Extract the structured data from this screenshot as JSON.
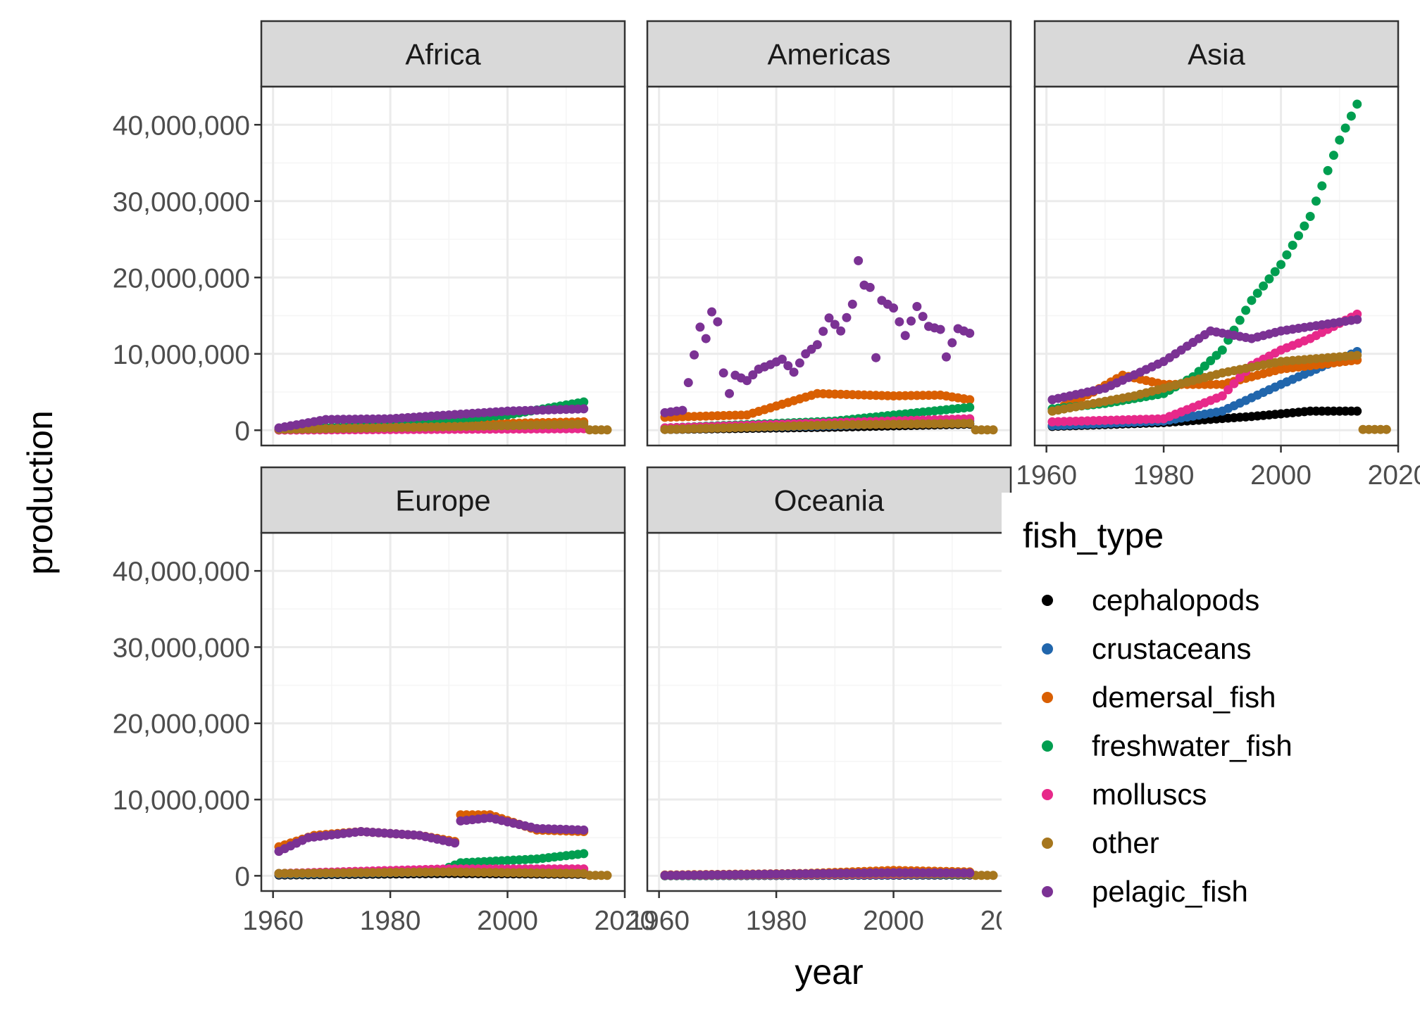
{
  "chart_data": {
    "type": "scatter",
    "facet_labels": [
      "Africa",
      "Americas",
      "Asia",
      "Europe",
      "Oceania"
    ],
    "xlabel": "year",
    "ylabel": "production",
    "x_ticks": [
      "1960",
      "1980",
      "2000",
      "2020"
    ],
    "x_tick_values": [
      1960,
      1980,
      2000,
      2020
    ],
    "xlim": [
      1958,
      2020
    ],
    "y_ticks": [
      "0",
      "10,000,000",
      "20,000,000",
      "30,000,000",
      "40,000,000"
    ],
    "y_tick_values": [
      0,
      10000000,
      20000000,
      30000000,
      40000000
    ],
    "ylim": [
      -2000000,
      45000000
    ],
    "legend": {
      "title": "fish_type",
      "position": "right",
      "items": [
        {
          "name": "cephalopods",
          "color": "#000000"
        },
        {
          "name": "crustaceans",
          "color": "#2166ac"
        },
        {
          "name": "demersal_fish",
          "color": "#d95f02"
        },
        {
          "name": "freshwater_fish",
          "color": "#009e50"
        },
        {
          "name": "molluscs",
          "color": "#e7298a"
        },
        {
          "name": "other",
          "color": "#a6761d"
        },
        {
          "name": "pelagic_fish",
          "color": "#7b3294"
        }
      ]
    },
    "grid": true,
    "series_by_facet": {
      "Africa": {
        "cephalopods": [
          [
            1961,
            50000
          ],
          [
            1990,
            200000
          ],
          [
            2013,
            350000
          ]
        ],
        "crustaceans": [
          [
            1961,
            50000
          ],
          [
            1990,
            150000
          ],
          [
            2013,
            300000
          ]
        ],
        "demersal_fish": [
          [
            1961,
            200000
          ],
          [
            1980,
            500000
          ],
          [
            2000,
            900000
          ],
          [
            2013,
            1100000
          ]
        ],
        "freshwater_fish": [
          [
            1961,
            100000
          ],
          [
            1980,
            700000
          ],
          [
            2000,
            2000000
          ],
          [
            2013,
            3700000
          ]
        ],
        "molluscs": [
          [
            1961,
            20000
          ],
          [
            2013,
            200000
          ]
        ],
        "other": [
          [
            1961,
            100000
          ],
          [
            2000,
            600000
          ],
          [
            2013,
            800000
          ],
          [
            2014,
            50000
          ],
          [
            2017,
            50000
          ]
        ],
        "pelagic_fish": [
          [
            1961,
            300000
          ],
          [
            1969,
            1400000
          ],
          [
            1980,
            1500000
          ],
          [
            1990,
            2000000
          ],
          [
            2000,
            2500000
          ],
          [
            2013,
            2800000
          ]
        ]
      },
      "Americas": {
        "cephalopods": [
          [
            1961,
            100000
          ],
          [
            1990,
            400000
          ],
          [
            2013,
            800000
          ]
        ],
        "crustaceans": [
          [
            1961,
            200000
          ],
          [
            1990,
            600000
          ],
          [
            2013,
            1200000
          ]
        ],
        "demersal_fish": [
          [
            1961,
            1700000
          ],
          [
            1975,
            2000000
          ],
          [
            1987,
            4800000
          ],
          [
            2000,
            4500000
          ],
          [
            2008,
            4600000
          ],
          [
            2013,
            4000000
          ]
        ],
        "freshwater_fish": [
          [
            1961,
            300000
          ],
          [
            1990,
            1200000
          ],
          [
            2013,
            3000000
          ]
        ],
        "molluscs": [
          [
            1961,
            300000
          ],
          [
            1990,
            1000000
          ],
          [
            2013,
            1500000
          ]
        ],
        "other": [
          [
            1961,
            100000
          ],
          [
            1990,
            700000
          ],
          [
            2013,
            900000
          ],
          [
            2014,
            50000
          ],
          [
            2017,
            50000
          ]
        ],
        "pelagic_fish": [
          [
            1961,
            2300000
          ],
          [
            1964,
            2600000
          ],
          [
            1967,
            13500000
          ],
          [
            1968,
            12000000
          ],
          [
            1969,
            15500000
          ],
          [
            1970,
            14200000
          ],
          [
            1971,
            7500000
          ],
          [
            1972,
            4800000
          ],
          [
            1973,
            7200000
          ],
          [
            1975,
            6500000
          ],
          [
            1977,
            8000000
          ],
          [
            1979,
            8600000
          ],
          [
            1981,
            9300000
          ],
          [
            1983,
            7600000
          ],
          [
            1985,
            10000000
          ],
          [
            1987,
            11200000
          ],
          [
            1989,
            14700000
          ],
          [
            1991,
            13000000
          ],
          [
            1993,
            16500000
          ],
          [
            1994,
            22200000
          ],
          [
            1995,
            19000000
          ],
          [
            1996,
            18700000
          ],
          [
            1997,
            9500000
          ],
          [
            1998,
            17000000
          ],
          [
            2000,
            16000000
          ],
          [
            2002,
            12400000
          ],
          [
            2004,
            16200000
          ],
          [
            2006,
            13600000
          ],
          [
            2008,
            13200000
          ],
          [
            2009,
            9600000
          ],
          [
            2011,
            13300000
          ],
          [
            2013,
            12700000
          ]
        ]
      },
      "Asia": {
        "cephalopods": [
          [
            1961,
            500000
          ],
          [
            1980,
            1000000
          ],
          [
            1995,
            1800000
          ],
          [
            2005,
            2500000
          ],
          [
            2013,
            2500000
          ]
        ],
        "crustaceans": [
          [
            1961,
            600000
          ],
          [
            1980,
            1200000
          ],
          [
            1990,
            2500000
          ],
          [
            2000,
            6000000
          ],
          [
            2013,
            10300000
          ]
        ],
        "demersal_fish": [
          [
            1961,
            2500000
          ],
          [
            1968,
            5000000
          ],
          [
            1973,
            7200000
          ],
          [
            1980,
            6000000
          ],
          [
            1990,
            6000000
          ],
          [
            2000,
            8000000
          ],
          [
            2013,
            9200000
          ]
        ],
        "freshwater_fish": [
          [
            1961,
            2800000
          ],
          [
            1970,
            3500000
          ],
          [
            1980,
            4800000
          ],
          [
            1985,
            7000000
          ],
          [
            1990,
            10500000
          ],
          [
            1995,
            17000000
          ],
          [
            2000,
            21700000
          ],
          [
            2005,
            28000000
          ],
          [
            2010,
            38000000
          ],
          [
            2013,
            42700000
          ]
        ],
        "molluscs": [
          [
            1961,
            1100000
          ],
          [
            1980,
            1500000
          ],
          [
            1990,
            4500000
          ],
          [
            1995,
            8500000
          ],
          [
            2000,
            10500000
          ],
          [
            2005,
            12000000
          ],
          [
            2013,
            15200000
          ]
        ],
        "other": [
          [
            1961,
            2500000
          ],
          [
            1975,
            4500000
          ],
          [
            1990,
            7500000
          ],
          [
            2000,
            9000000
          ],
          [
            2013,
            9800000
          ],
          [
            2014,
            100000
          ],
          [
            2018,
            100000
          ]
        ],
        "pelagic_fish": [
          [
            1961,
            4000000
          ],
          [
            1970,
            5500000
          ],
          [
            1980,
            9000000
          ],
          [
            1988,
            13000000
          ],
          [
            1995,
            12000000
          ],
          [
            2000,
            13000000
          ],
          [
            2013,
            14500000
          ]
        ]
      },
      "Europe": {
        "cephalopods": [
          [
            1961,
            100000
          ],
          [
            1990,
            300000
          ],
          [
            2013,
            200000
          ]
        ],
        "crustaceans": [
          [
            1961,
            200000
          ],
          [
            1990,
            500000
          ],
          [
            2013,
            600000
          ]
        ],
        "demersal_fish": [
          [
            1961,
            3800000
          ],
          [
            1967,
            5300000
          ],
          [
            1975,
            5800000
          ],
          [
            1985,
            5300000
          ],
          [
            1991,
            4500000
          ],
          [
            1992,
            8000000
          ],
          [
            1997,
            8000000
          ],
          [
            2005,
            6000000
          ],
          [
            2013,
            5800000
          ]
        ],
        "freshwater_fish": [
          [
            1961,
            300000
          ],
          [
            1988,
            500000
          ],
          [
            1992,
            1700000
          ],
          [
            2005,
            2200000
          ],
          [
            2013,
            2900000
          ]
        ],
        "molluscs": [
          [
            1961,
            300000
          ],
          [
            1990,
            900000
          ],
          [
            2013,
            900000
          ]
        ],
        "other": [
          [
            1961,
            300000
          ],
          [
            1990,
            500000
          ],
          [
            2013,
            300000
          ],
          [
            2014,
            50000
          ],
          [
            2017,
            50000
          ]
        ],
        "pelagic_fish": [
          [
            1961,
            3200000
          ],
          [
            1966,
            5000000
          ],
          [
            1975,
            5800000
          ],
          [
            1985,
            5300000
          ],
          [
            1991,
            4300000
          ],
          [
            1992,
            7200000
          ],
          [
            1997,
            7600000
          ],
          [
            2005,
            6200000
          ],
          [
            2013,
            6000000
          ]
        ]
      },
      "Oceania": {
        "cephalopods": [
          [
            1961,
            10000
          ],
          [
            2013,
            100000
          ]
        ],
        "crustaceans": [
          [
            1961,
            20000
          ],
          [
            2013,
            150000
          ]
        ],
        "demersal_fish": [
          [
            1961,
            100000
          ],
          [
            1985,
            300000
          ],
          [
            2000,
            700000
          ],
          [
            2013,
            500000
          ]
        ],
        "freshwater_fish": [
          [
            1961,
            20000
          ],
          [
            2013,
            300000
          ]
        ],
        "molluscs": [
          [
            1961,
            50000
          ],
          [
            2013,
            250000
          ]
        ],
        "other": [
          [
            1961,
            50000
          ],
          [
            2000,
            300000
          ],
          [
            2013,
            200000
          ],
          [
            2014,
            50000
          ],
          [
            2017,
            50000
          ]
        ],
        "pelagic_fish": [
          [
            1961,
            50000
          ],
          [
            2000,
            400000
          ],
          [
            2013,
            350000
          ]
        ]
      }
    }
  }
}
